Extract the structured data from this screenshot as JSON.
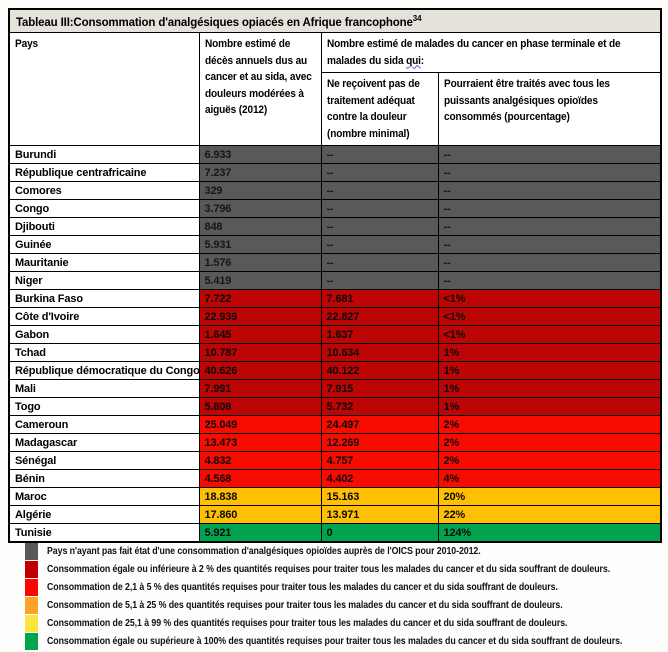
{
  "title": {
    "text": "Tableau III:Consommation d'analgésiques opiacés en Afrique francophone",
    "footnote": "34"
  },
  "table": {
    "headers": {
      "pays": "Pays",
      "deces": "Nombre estimé de décès annuels dus au cancer et au sida, avec douleurs modérées à aiguës (2012)",
      "group_prefix": "Nombre estimé de malades du cancer en phase terminale et de malades du sida ",
      "group_wavy": "qui",
      "group_suffix": ":",
      "sans_traitement": "Ne reçoivent pas de traitement adéquat contre la douleur (nombre minimal)",
      "pourcentage": "Pourraient être traités avec tous les puissants analgésiques opioïdes consommés (pourcentage)"
    },
    "rows": [
      {
        "pays": "Burundi",
        "deces": "6.933",
        "sans_traitement": "--",
        "pourcentage": "--",
        "category": "gray"
      },
      {
        "pays": "République centrafricaine",
        "deces": "7.237",
        "sans_traitement": "--",
        "pourcentage": "--",
        "category": "gray"
      },
      {
        "pays": "Comores",
        "deces": "329",
        "sans_traitement": "--",
        "pourcentage": "--",
        "category": "gray"
      },
      {
        "pays": "Congo",
        "deces": "3.796",
        "sans_traitement": "--",
        "pourcentage": "--",
        "category": "gray"
      },
      {
        "pays": "Djibouti",
        "deces": "848",
        "sans_traitement": "--",
        "pourcentage": "--",
        "category": "gray"
      },
      {
        "pays": "Guinée",
        "deces": "5.931",
        "sans_traitement": "--",
        "pourcentage": "--",
        "category": "gray"
      },
      {
        "pays": "Mauritanie",
        "deces": "1.576",
        "sans_traitement": "--",
        "pourcentage": "--",
        "category": "gray"
      },
      {
        "pays": "Niger",
        "deces": "5.419",
        "sans_traitement": "--",
        "pourcentage": "--",
        "category": "gray"
      },
      {
        "pays": "Burkina Faso",
        "deces": "7.722",
        "sans_traitement": "7.681",
        "pourcentage": "<1%",
        "category": "darkred"
      },
      {
        "pays": "Côte d'Ivoire",
        "deces": "22.939",
        "sans_traitement": "22.827",
        "pourcentage": "<1%",
        "category": "darkred"
      },
      {
        "pays": "Gabon",
        "deces": "1.645",
        "sans_traitement": "1.637",
        "pourcentage": "<1%",
        "category": "darkred"
      },
      {
        "pays": "Tchad",
        "deces": "10.787",
        "sans_traitement": "10.634",
        "pourcentage": "1%",
        "category": "darkred"
      },
      {
        "pays": "République démocratique du Congo",
        "deces": "40.626",
        "sans_traitement": "40.122",
        "pourcentage": "1%",
        "category": "darkred"
      },
      {
        "pays": "Mali",
        "deces": "7.991",
        "sans_traitement": "7.915",
        "pourcentage": "1%",
        "category": "darkred"
      },
      {
        "pays": "Togo",
        "deces": "5.808",
        "sans_traitement": "5.732",
        "pourcentage": "1%",
        "category": "darkred"
      },
      {
        "pays": "Cameroun",
        "deces": "25.049",
        "sans_traitement": "24.497",
        "pourcentage": "2%",
        "category": "red"
      },
      {
        "pays": "Madagascar",
        "deces": "13.473",
        "sans_traitement": "12.269",
        "pourcentage": "2%",
        "category": "red"
      },
      {
        "pays": "Sénégal",
        "deces": "4.832",
        "sans_traitement": "4.757",
        "pourcentage": "2%",
        "category": "red"
      },
      {
        "pays": "Bénin",
        "deces": "4.568",
        "sans_traitement": "4.402",
        "pourcentage": "4%",
        "category": "red"
      },
      {
        "pays": "Maroc",
        "deces": "18.838",
        "sans_traitement": "15.163",
        "pourcentage": "20%",
        "category": "amber"
      },
      {
        "pays": "Algérie",
        "deces": "17.860",
        "sans_traitement": "13.971",
        "pourcentage": "22%",
        "category": "amber"
      },
      {
        "pays": "Tunisie",
        "deces": "5.921",
        "sans_traitement": "0",
        "pourcentage": "124%",
        "category": "green"
      }
    ]
  },
  "colors": {
    "gray": "#595959",
    "darkred": "#BE0505",
    "red": "#F80B00",
    "amber": "#FFC003",
    "green": "#00A44F",
    "title_bar": "#E4E2DA"
  },
  "legend": [
    {
      "key": "no-report",
      "swatch": "#595959",
      "text": "Pays n'ayant pas fait état d'une consommation d'analgésiques opioïdes auprès de l'OICS pour 2010-2012."
    },
    {
      "key": "le-2",
      "swatch": "#C00000",
      "text": "Consommation égale ou inférieure à 2 % des quantités requises pour traiter tous les malades du cancer et du sida souffrant de douleurs."
    },
    {
      "key": "2-5",
      "swatch": "#FB0600",
      "text": "Consommation de 2,1 à 5 % des quantités requises pour traiter tous les malades du cancer et du sida souffrant de douleurs."
    },
    {
      "key": "5-25",
      "swatch": "#FCA228",
      "text": "Consommation de 5,1 à 25 % des quantités requises pour traiter tous les malades du cancer et du sida souffrant de douleurs."
    },
    {
      "key": "25-99",
      "swatch": "#FCE43C",
      "text": "Consommation de 25,1 à 99 % des quantités requises pour traiter tous les malades du cancer et du sida souffrant de douleurs."
    },
    {
      "key": "ge-100",
      "swatch": "#00A44F",
      "text": "Consommation égale ou supérieure à 100% des quantités requises pour traiter tous les malades du cancer et du sida souffrant de douleurs."
    }
  ]
}
